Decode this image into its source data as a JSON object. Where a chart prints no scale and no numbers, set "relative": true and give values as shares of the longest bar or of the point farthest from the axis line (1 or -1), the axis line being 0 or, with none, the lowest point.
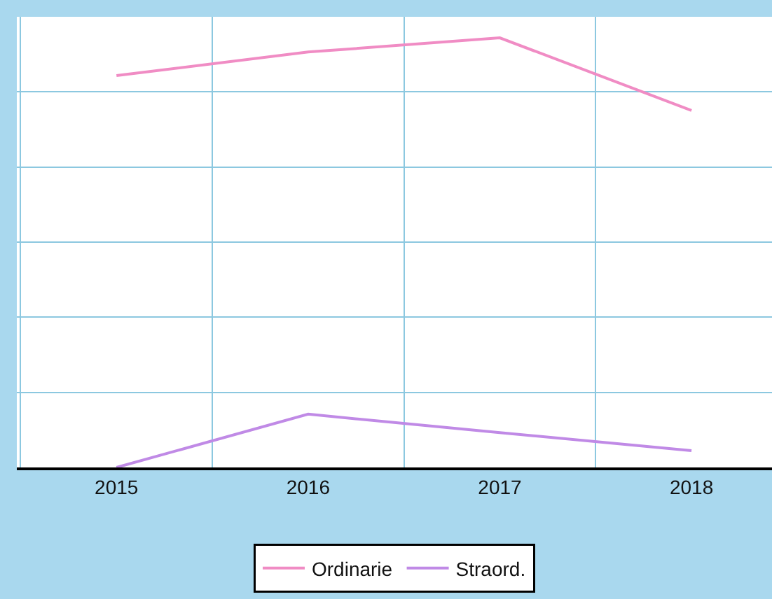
{
  "chart_data": {
    "type": "line",
    "relative": true,
    "categories": [
      "2015",
      "2016",
      "2017",
      "2018"
    ],
    "series": [
      {
        "name": "Ordinarie",
        "color": "#f08cc4",
        "values": [
          0.912,
          0.967,
          1,
          0.831
        ]
      },
      {
        "name": "Straord.",
        "color": "#c08ae6",
        "values": [
          0,
          0.124,
          0.081,
          0.039
        ]
      }
    ],
    "grid": true,
    "legend": "bottom",
    "marker": "none"
  }
}
